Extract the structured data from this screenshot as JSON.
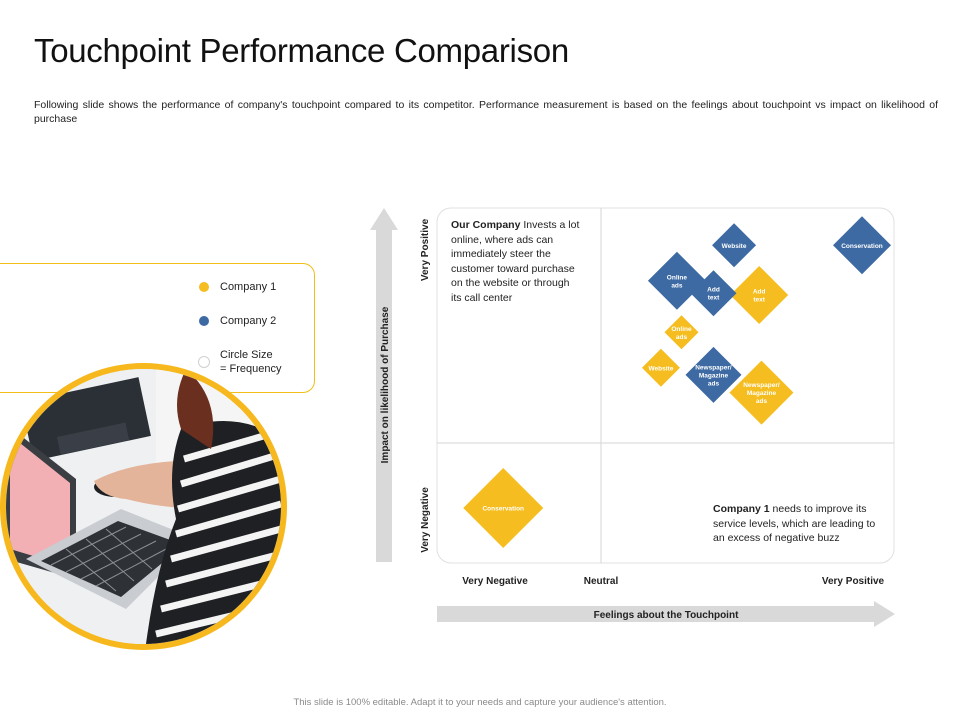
{
  "header": {
    "title": "Touchpoint Performance Comparison",
    "subtitle": "Following slide shows the performance of company's touchpoint compared to its competitor. Performance measurement is based on the feelings about touchpoint vs impact on likelihood of purchase"
  },
  "legend": {
    "company1": "Company 1",
    "company2": "Company 2",
    "size_line1": "Circle Size",
    "size_line2": "= Frequency"
  },
  "notes": {
    "our_company_bold": "Our Company",
    "our_company_l1": " Invests a lot",
    "our_company_l2": "online, where ads can",
    "our_company_l3": "immediately steer the",
    "our_company_l4": "customer toward purchase",
    "our_company_l5": "on the website or through",
    "our_company_l6": "its call center",
    "company1_bold": "Company 1",
    "company1_l1": " needs to improve its",
    "company1_l2": "service levels, which are leading to",
    "company1_l3": "an excess of negative buzz"
  },
  "footer": "This slide is 100% editable. Adapt it to your needs and capture your audience's attention.",
  "colors": {
    "company1": "#f5bd1f",
    "company2": "#3d6aa3",
    "arrow": "#d9d9d9",
    "grid": "#d6d6d6"
  },
  "chart_data": {
    "type": "scatter",
    "xlabel": "Feelings about the Touchpoint",
    "ylabel": "Impact on likelihood of Purchase",
    "x_ticks": [
      "Very Negative",
      "Neutral",
      "Very Positive"
    ],
    "y_ticks": [
      "Very Negative",
      "Very Positive"
    ],
    "xlim": [
      -1,
      1
    ],
    "ylim": [
      -1,
      1
    ],
    "series": [
      {
        "name": "Company 1",
        "color": "#f5bd1f",
        "points": [
          {
            "label": "Conservation",
            "x": -0.71,
            "y": -0.69,
            "size": 40
          },
          {
            "label": "Add text",
            "x": 0.41,
            "y": 0.51,
            "size": 29
          },
          {
            "label": "Online ads",
            "x": 0.07,
            "y": 0.3,
            "size": 17
          },
          {
            "label": "Website",
            "x": -0.02,
            "y": 0.1,
            "size": 19
          },
          {
            "label": "Newspaper/ Magazine ads",
            "x": 0.42,
            "y": -0.04,
            "size": 32
          }
        ]
      },
      {
        "name": "Company 2",
        "color": "#3d6aa3",
        "points": [
          {
            "label": "Website",
            "x": 0.3,
            "y": 0.79,
            "size": 22
          },
          {
            "label": "Conservation",
            "x": 0.86,
            "y": 0.79,
            "size": 29
          },
          {
            "label": "Online ads",
            "x": 0.05,
            "y": 0.59,
            "size": 29
          },
          {
            "label": "Add text",
            "x": 0.21,
            "y": 0.52,
            "size": 23
          },
          {
            "label": "Newspaper/ Magazine ads",
            "x": 0.21,
            "y": 0.06,
            "size": 28
          }
        ]
      }
    ]
  }
}
